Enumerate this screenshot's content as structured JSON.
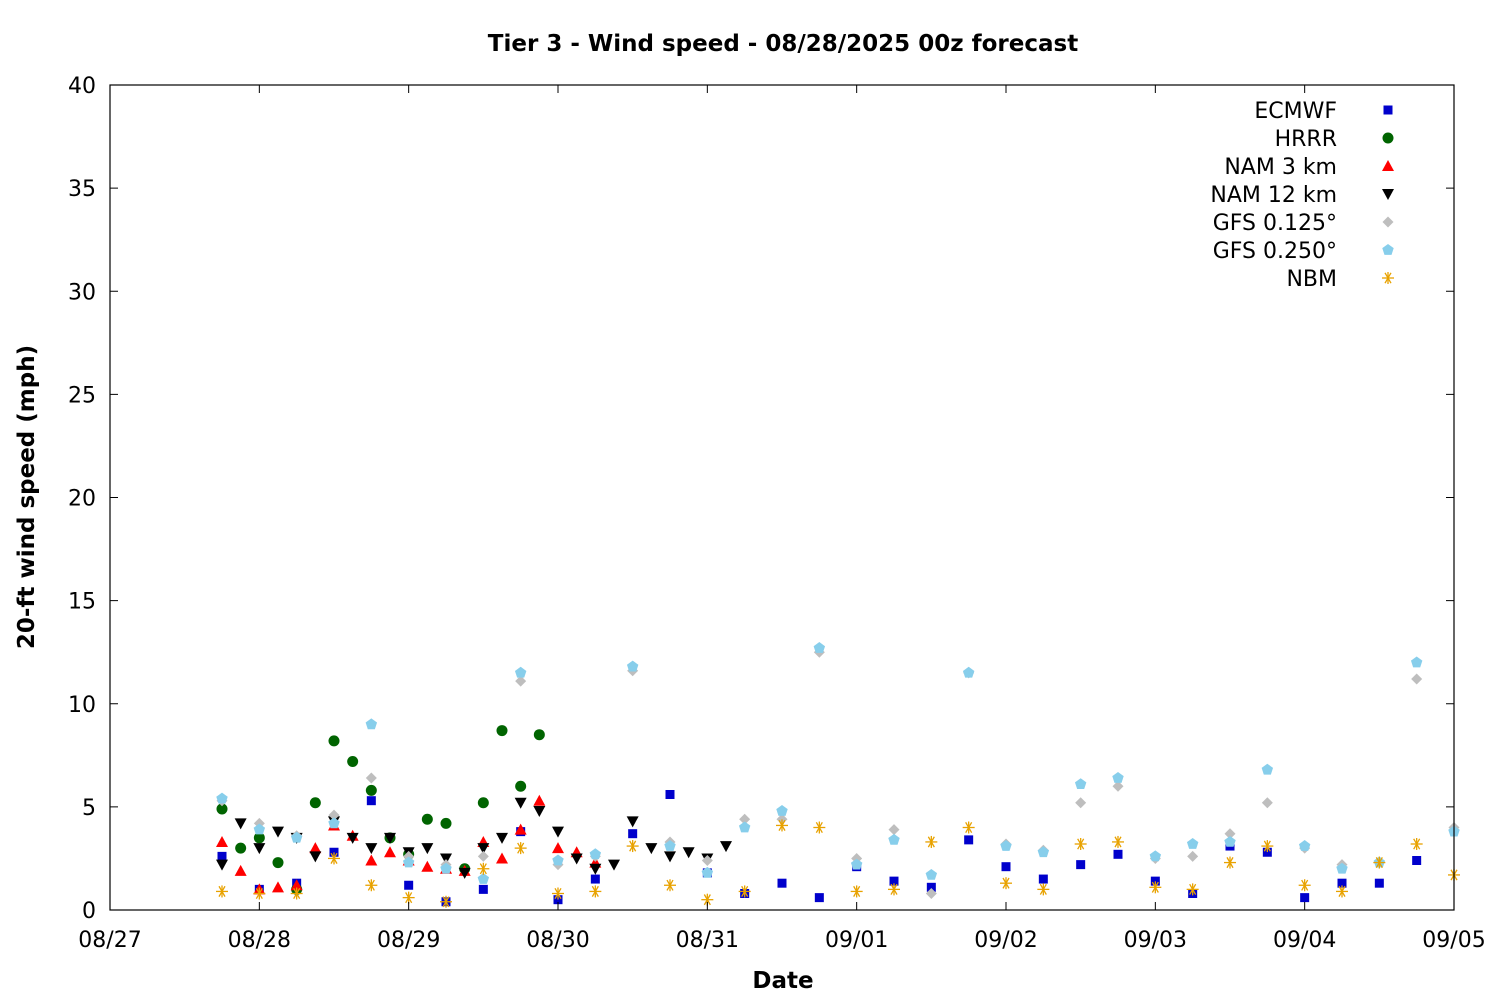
{
  "chart_data": {
    "type": "scatter",
    "title": "Tier 3 - Wind speed - 08/28/2025 00z forecast",
    "xlabel": "Date",
    "ylabel": "20-ft wind speed (mph)",
    "x_axis": {
      "unit": "days",
      "range_dates": [
        "08/27",
        "09/05"
      ],
      "ticks": [
        "08/27",
        "08/28",
        "08/29",
        "08/30",
        "08/31",
        "09/01",
        "09/02",
        "09/03",
        "09/04",
        "09/05"
      ]
    },
    "y_axis": {
      "range": [
        0,
        40
      ],
      "ticks": [
        "0",
        "5",
        "10",
        "15",
        "20",
        "25",
        "30",
        "35",
        "40"
      ]
    },
    "grid": false,
    "legend_position": "top-right",
    "series": [
      {
        "name": "ECMWF",
        "marker": "square",
        "color": "#0000cc",
        "x": [
          "08/27 18z",
          "08/28 00z",
          "08/28 06z",
          "08/28 12z",
          "08/28 18z",
          "08/29 00z",
          "08/29 06z",
          "08/29 12z",
          "08/29 18z",
          "08/30 00z",
          "08/30 06z",
          "08/30 12z",
          "08/30 18z",
          "08/31 00z",
          "08/31 06z",
          "08/31 12z",
          "08/31 18z",
          "09/01 00z",
          "09/01 06z",
          "09/01 12z",
          "09/01 18z",
          "09/02 00z",
          "09/02 06z",
          "09/02 12z",
          "09/02 18z",
          "09/03 00z",
          "09/03 06z",
          "09/03 12z",
          "09/03 18z",
          "09/04 00z",
          "09/04 06z",
          "09/04 12z",
          "09/04 18z"
        ],
        "y": [
          2.6,
          1.0,
          1.3,
          2.8,
          5.3,
          1.2,
          0.4,
          1.0,
          3.8,
          0.5,
          1.5,
          3.7,
          5.6,
          1.8,
          0.8,
          1.3,
          0.6,
          2.1,
          1.4,
          1.1,
          3.4,
          2.1,
          1.5,
          2.2,
          2.7,
          1.4,
          0.8,
          3.1,
          2.8,
          0.6,
          1.3,
          1.3,
          2.4
        ]
      },
      {
        "name": "HRRR",
        "marker": "circle",
        "color": "#006400",
        "x": [
          "08/27 18z",
          "08/27 21z",
          "08/28 00z",
          "08/28 03z",
          "08/28 06z",
          "08/28 09z",
          "08/28 12z",
          "08/28 15z",
          "08/28 18z",
          "08/28 21z",
          "08/29 00z",
          "08/29 03z",
          "08/29 06z",
          "08/29 09z",
          "08/29 12z",
          "08/29 15z",
          "08/29 18z",
          "08/29 21z"
        ],
        "y": [
          4.9,
          3.0,
          3.5,
          2.3,
          1.0,
          5.2,
          8.2,
          7.2,
          5.8,
          3.5,
          2.7,
          4.4,
          4.2,
          2.0,
          5.2,
          8.7,
          6.0,
          8.5
        ]
      },
      {
        "name": "NAM 3 km",
        "marker": "triangle-up",
        "color": "#ff0000",
        "x": [
          "08/27 18z",
          "08/27 21z",
          "08/28 00z",
          "08/28 03z",
          "08/28 06z",
          "08/28 09z",
          "08/28 12z",
          "08/28 15z",
          "08/28 18z",
          "08/28 21z",
          "08/29 00z",
          "08/29 03z",
          "08/29 06z",
          "08/29 09z",
          "08/29 12z",
          "08/29 15z",
          "08/29 18z",
          "08/29 21z",
          "08/30 00z",
          "08/30 03z",
          "08/30 06z"
        ],
        "y": [
          3.3,
          1.9,
          1.0,
          1.1,
          1.2,
          3.0,
          4.1,
          3.6,
          2.4,
          2.8,
          2.4,
          2.1,
          2.0,
          1.9,
          3.3,
          2.5,
          3.9,
          5.3,
          3.0,
          2.8,
          2.3
        ]
      },
      {
        "name": "NAM 12 km",
        "marker": "triangle-down",
        "color": "#000000",
        "x": [
          "08/27 18z",
          "08/27 21z",
          "08/28 00z",
          "08/28 03z",
          "08/28 06z",
          "08/28 09z",
          "08/28 12z",
          "08/28 15z",
          "08/28 18z",
          "08/28 21z",
          "08/29 00z",
          "08/29 03z",
          "08/29 06z",
          "08/29 09z",
          "08/29 12z",
          "08/29 15z",
          "08/29 18z",
          "08/29 21z",
          "08/30 00z",
          "08/30 03z",
          "08/30 06z",
          "08/30 09z",
          "08/30 12z",
          "08/30 15z",
          "08/30 18z",
          "08/30 21z",
          "08/31 00z",
          "08/31 03z"
        ],
        "y": [
          2.2,
          4.2,
          3.0,
          3.8,
          3.5,
          2.6,
          4.3,
          3.5,
          3.0,
          3.5,
          2.8,
          3.0,
          2.5,
          1.8,
          3.0,
          3.5,
          5.2,
          4.8,
          3.8,
          2.5,
          2.0,
          2.2,
          4.3,
          3.0,
          2.6,
          2.8,
          2.5,
          3.1
        ]
      },
      {
        "name": "GFS 0.125°",
        "marker": "diamond",
        "color": "#bebebe",
        "x": [
          "08/27 18z",
          "08/28 00z",
          "08/28 06z",
          "08/28 12z",
          "08/28 18z",
          "08/29 00z",
          "08/29 06z",
          "08/29 12z",
          "08/29 18z",
          "08/30 00z",
          "08/30 06z",
          "08/30 12z",
          "08/30 18z",
          "08/31 00z",
          "08/31 06z",
          "08/31 12z",
          "08/31 18z",
          "09/01 00z",
          "09/01 06z",
          "09/01 12z",
          "09/01 18z",
          "09/02 00z",
          "09/02 06z",
          "09/02 12z",
          "09/02 18z",
          "09/03 00z",
          "09/03 06z",
          "09/03 12z",
          "09/03 18z",
          "09/04 00z",
          "09/04 06z",
          "09/04 12z",
          "09/04 18z",
          "09/05 00z"
        ],
        "y": [
          5.3,
          4.2,
          3.6,
          4.6,
          6.4,
          2.6,
          2.2,
          2.6,
          11.1,
          2.2,
          2.6,
          11.6,
          3.3,
          2.4,
          4.4,
          4.4,
          12.5,
          2.5,
          3.9,
          0.8,
          11.5,
          3.2,
          2.9,
          5.2,
          6.0,
          2.5,
          2.6,
          3.7,
          5.2,
          3.0,
          2.2,
          2.3,
          11.2,
          4.0
        ]
      },
      {
        "name": "GFS 0.250°",
        "marker": "pentagon",
        "color": "#87ceeb",
        "x": [
          "08/27 18z",
          "08/28 00z",
          "08/28 06z",
          "08/28 12z",
          "08/28 18z",
          "08/29 00z",
          "08/29 06z",
          "08/29 12z",
          "08/29 18z",
          "08/30 00z",
          "08/30 06z",
          "08/30 12z",
          "08/30 18z",
          "08/31 00z",
          "08/31 06z",
          "08/31 12z",
          "08/31 18z",
          "09/01 00z",
          "09/01 06z",
          "09/01 12z",
          "09/01 18z",
          "09/02 00z",
          "09/02 06z",
          "09/02 12z",
          "09/02 18z",
          "09/03 00z",
          "09/03 06z",
          "09/03 12z",
          "09/03 18z",
          "09/04 00z",
          "09/04 06z",
          "09/04 12z",
          "09/04 18z",
          "09/05 00z"
        ],
        "y": [
          5.4,
          3.9,
          3.5,
          4.2,
          9.0,
          2.3,
          2.0,
          1.5,
          11.5,
          2.4,
          2.7,
          11.8,
          3.1,
          1.8,
          4.0,
          4.8,
          12.7,
          2.2,
          3.4,
          1.7,
          11.5,
          3.1,
          2.8,
          6.1,
          6.4,
          2.6,
          3.2,
          3.3,
          6.8,
          3.1,
          2.0,
          2.3,
          12.0,
          3.8
        ]
      },
      {
        "name": "NBM",
        "marker": "asterisk",
        "color": "#e8a200",
        "x": [
          "08/27 18z",
          "08/28 00z",
          "08/28 06z",
          "08/28 12z",
          "08/28 18z",
          "08/29 00z",
          "08/29 06z",
          "08/29 12z",
          "08/29 18z",
          "08/30 00z",
          "08/30 06z",
          "08/30 12z",
          "08/30 18z",
          "08/31 00z",
          "08/31 06z",
          "08/31 12z",
          "08/31 18z",
          "09/01 00z",
          "09/01 06z",
          "09/01 12z",
          "09/01 18z",
          "09/02 00z",
          "09/02 06z",
          "09/02 12z",
          "09/02 18z",
          "09/03 00z",
          "09/03 06z",
          "09/03 12z",
          "09/03 18z",
          "09/04 00z",
          "09/04 06z",
          "09/04 12z",
          "09/04 18z",
          "09/05 00z"
        ],
        "y": [
          0.9,
          0.8,
          0.8,
          2.5,
          1.2,
          0.6,
          0.4,
          2.0,
          3.0,
          0.8,
          0.9,
          3.1,
          1.2,
          0.5,
          0.9,
          4.1,
          4.0,
          0.9,
          1.0,
          3.3,
          4.0,
          1.3,
          1.0,
          3.2,
          3.3,
          1.1,
          1.0,
          2.3,
          3.1,
          1.2,
          0.9,
          2.3,
          3.2,
          1.7
        ]
      }
    ]
  }
}
